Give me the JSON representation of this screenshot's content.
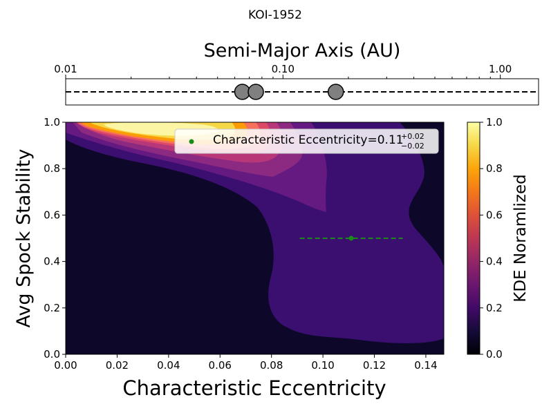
{
  "chart_data": [
    {
      "type": "scatter",
      "title": "KOI-1952",
      "xlabel": "Semi-Major Axis (AU)",
      "xscale": "log",
      "xlim": [
        0.01,
        1.5
      ],
      "ticks": [
        {
          "value": 0.01,
          "label": "0.01"
        },
        {
          "value": 0.1,
          "label": "0.10"
        },
        {
          "value": 1.0,
          "label": "1.00"
        }
      ],
      "planets_au": [
        0.065,
        0.075,
        0.175
      ],
      "line_style": "dashed",
      "marker_color": "#808080"
    },
    {
      "type": "heatmap",
      "xlabel": "Characteristic Eccentricity",
      "ylabel": "Avg Spock Stability",
      "xlim": [
        0.0,
        0.147
      ],
      "ylim": [
        0.0,
        1.0
      ],
      "xticks": [
        {
          "value": 0.0,
          "label": "0.00"
        },
        {
          "value": 0.02,
          "label": "0.02"
        },
        {
          "value": 0.04,
          "label": "0.04"
        },
        {
          "value": 0.06,
          "label": "0.06"
        },
        {
          "value": 0.08,
          "label": "0.08"
        },
        {
          "value": 0.1,
          "label": "0.10"
        },
        {
          "value": 0.12,
          "label": "0.12"
        },
        {
          "value": 0.14,
          "label": "0.14"
        }
      ],
      "yticks": [
        {
          "value": 0.0,
          "label": "0.0"
        },
        {
          "value": 0.2,
          "label": "0.2"
        },
        {
          "value": 0.4,
          "label": "0.4"
        },
        {
          "value": 0.6,
          "label": "0.6"
        },
        {
          "value": 0.8,
          "label": "0.8"
        },
        {
          "value": 1.0,
          "label": "1.0"
        }
      ],
      "kde_peak": {
        "x": 0.032,
        "y": 0.98
      },
      "colormap": "inferno",
      "colorbar": {
        "label": "KDE Noramlized",
        "range": [
          0.0,
          1.0
        ],
        "ticks": [
          "0.0",
          "0.2",
          "0.4",
          "0.6",
          "0.8",
          "1.0"
        ]
      },
      "characteristic_point": {
        "x": 0.111,
        "y": 0.5,
        "err_minus": 0.02,
        "err_plus": 0.02
      },
      "marker_color": "#1a8a1a",
      "legend": {
        "placement": "top-right",
        "label_prefix": "Characteristic Eccentricity=0.11",
        "sup": "+0.02",
        "sub": "−0.02"
      }
    }
  ]
}
